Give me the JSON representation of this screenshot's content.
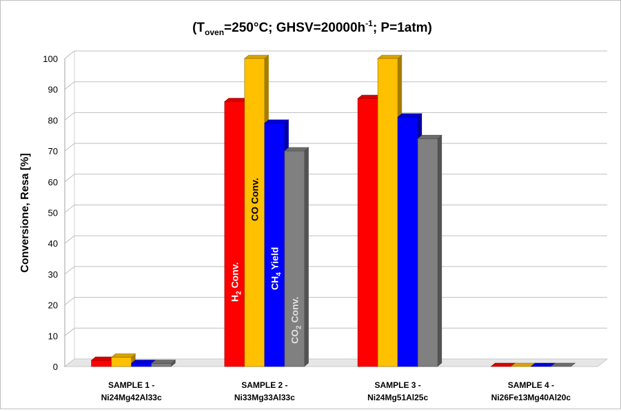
{
  "chart_data": {
    "type": "bar",
    "title": "(Toven=250°C; GHSV=20000h-1; P=1atm)",
    "title_parts": {
      "open": "(T",
      "sub": "oven",
      "after_sub": "=250°C; GHSV=20000h",
      "sup": "-1",
      "close": "; P=1atm)"
    },
    "xlabel": "",
    "ylabel": "Conversione, Resa [%]",
    "ylim": [
      0,
      100
    ],
    "yticks": [
      "0",
      "10",
      "20",
      "30",
      "40",
      "50",
      "60",
      "70",
      "80",
      "90",
      "100"
    ],
    "grid": true,
    "categories": [
      {
        "line1": "SAMPLE 1 -",
        "line2": "Ni24Mg42Al33c"
      },
      {
        "line1": "SAMPLE 2 -",
        "line2": "Ni33Mg33Al33c"
      },
      {
        "line1": "SAMPLE 3 -",
        "line2": "Ni24Mg51Al25c"
      },
      {
        "line1": "SAMPLE 4 -",
        "line2": "Ni26Fe13Mg40Al20c"
      }
    ],
    "series": [
      {
        "name": "H2 Conv.",
        "label_main": "H",
        "label_sub": "2",
        "label_rest": " Conv.",
        "label_color": "#ffffff",
        "color": "#ff0000",
        "values": [
          2,
          86,
          87,
          0
        ]
      },
      {
        "name": "CO Conv.",
        "label_main": "CO Conv.",
        "label_sub": "",
        "label_rest": "",
        "label_color": "#000000",
        "color": "#ffc000",
        "values": [
          3,
          100,
          100,
          0
        ]
      },
      {
        "name": "CH4 Yield",
        "label_main": "CH",
        "label_sub": "4",
        "label_rest": " Yield",
        "label_color": "#ffffff",
        "color": "#0000ff",
        "values": [
          1,
          79,
          81,
          0
        ]
      },
      {
        "name": "CO2 Conv.",
        "label_main": "CO",
        "label_sub": "2",
        "label_rest": " Conv.",
        "label_color": "#e0e0e0",
        "color": "#808080",
        "values": [
          1,
          70,
          74,
          0
        ]
      }
    ]
  }
}
